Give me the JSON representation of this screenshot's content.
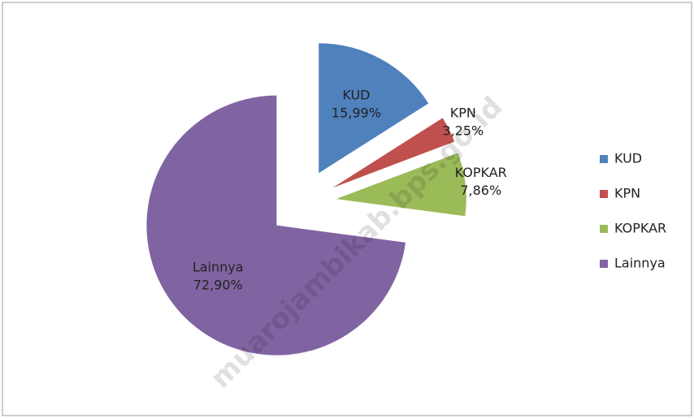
{
  "chart_data": {
    "type": "pie",
    "categories": [
      "KUD",
      "KPN",
      "KOPKAR",
      "Lainnya"
    ],
    "values": [
      15.99,
      3.25,
      7.86,
      72.9
    ],
    "value_labels": [
      "15,99%",
      "3,25%",
      "7,86%",
      "72,90%"
    ],
    "colors": [
      "#4f81bd",
      "#c0504d",
      "#9bbb59",
      "#8064a2"
    ],
    "exploded": true,
    "legend": "right",
    "watermark": "muarojambikab.bps.go.id"
  }
}
